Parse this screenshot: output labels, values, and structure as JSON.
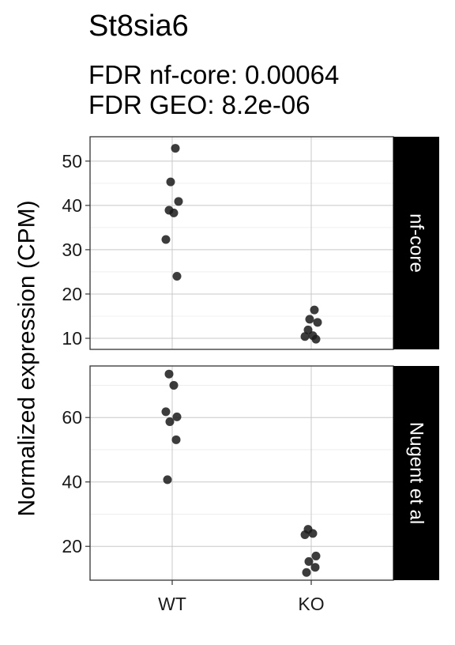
{
  "chart_data": {
    "type": "scatter",
    "title": "St8sia6",
    "subtitle_lines": [
      "FDR nf-core: 0.00064",
      "FDR GEO: 8.2e-06"
    ],
    "ylabel": "Normalized expression (CPM)",
    "xlabel": "",
    "categories": [
      "WT",
      "KO"
    ],
    "grid": true,
    "panels": [
      {
        "strip": "nf-core",
        "ylim": [
          7.5,
          55.5
        ],
        "yticks": [
          10,
          20,
          30,
          40,
          50
        ],
        "points": [
          {
            "group": "WT",
            "y": 52.9
          },
          {
            "group": "WT",
            "y": 45.3
          },
          {
            "group": "WT",
            "y": 40.9
          },
          {
            "group": "WT",
            "y": 38.9
          },
          {
            "group": "WT",
            "y": 38.3
          },
          {
            "group": "WT",
            "y": 32.3
          },
          {
            "group": "WT",
            "y": 24.0
          },
          {
            "group": "KO",
            "y": 16.4
          },
          {
            "group": "KO",
            "y": 14.3
          },
          {
            "group": "KO",
            "y": 13.6
          },
          {
            "group": "KO",
            "y": 11.9
          },
          {
            "group": "KO",
            "y": 10.6
          },
          {
            "group": "KO",
            "y": 10.4
          },
          {
            "group": "KO",
            "y": 9.8
          }
        ]
      },
      {
        "strip": "Nugent et al",
        "ylim": [
          9.5,
          76.0
        ],
        "yticks": [
          20,
          40,
          60
        ],
        "points": [
          {
            "group": "WT",
            "y": 73.5
          },
          {
            "group": "WT",
            "y": 70.0
          },
          {
            "group": "WT",
            "y": 61.8
          },
          {
            "group": "WT",
            "y": 60.2
          },
          {
            "group": "WT",
            "y": 58.7
          },
          {
            "group": "WT",
            "y": 53.1
          },
          {
            "group": "WT",
            "y": 40.7
          },
          {
            "group": "KO",
            "y": 25.3
          },
          {
            "group": "KO",
            "y": 24.0
          },
          {
            "group": "KO",
            "y": 23.6
          },
          {
            "group": "KO",
            "y": 17.0
          },
          {
            "group": "KO",
            "y": 15.3
          },
          {
            "group": "KO",
            "y": 13.5
          },
          {
            "group": "KO",
            "y": 11.9
          }
        ]
      }
    ],
    "point_color": "#1a1a1a"
  }
}
